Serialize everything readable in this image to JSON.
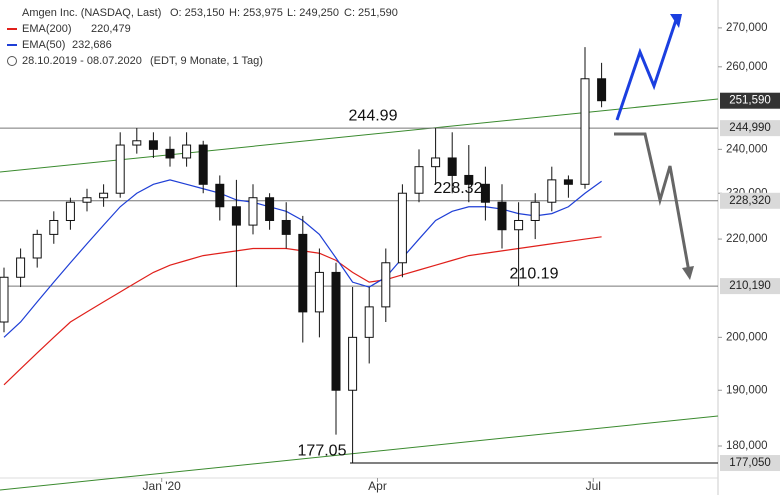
{
  "chart_data": {
    "type": "candlestick",
    "header": {
      "title": "Amgen Inc. (NASDAQ, Last)",
      "ohlc": [
        "O: 253,150",
        "H: 253,975",
        "L: 249,250",
        "C: 251,590"
      ],
      "period": "28.10.2019 - 08.07.2020",
      "period_note": "(EDT, 9 Monate, 1 Tag)"
    },
    "categories": [
      null,
      null,
      null,
      null,
      null,
      null,
      null,
      null,
      null,
      null,
      null,
      null,
      null,
      null,
      null,
      null,
      null,
      null,
      null,
      null,
      null,
      null,
      null,
      null,
      null,
      null,
      null,
      null,
      null,
      null,
      null,
      null,
      null,
      null,
      null,
      null,
      null
    ],
    "open": [
      203,
      212,
      216,
      221,
      224,
      228,
      229,
      230,
      241,
      242,
      240,
      238,
      241,
      232,
      227,
      223,
      229,
      224,
      221,
      205,
      213,
      190,
      200,
      206,
      215,
      230,
      236,
      238,
      234,
      232,
      228,
      222,
      224,
      228,
      233,
      232,
      257
    ],
    "high": [
      214,
      218,
      222,
      226,
      229,
      231,
      232,
      244,
      245,
      244,
      243,
      244,
      242,
      234,
      233,
      232,
      230,
      228,
      225,
      218,
      215,
      210,
      210,
      218,
      232,
      240,
      245,
      244,
      241,
      236,
      232,
      228,
      230,
      236,
      234,
      265,
      261
    ],
    "low": [
      201,
      210,
      214,
      219,
      222,
      226,
      227,
      229,
      239,
      238,
      236,
      236,
      230,
      224,
      210,
      221,
      222,
      218,
      199,
      200,
      182,
      177.05,
      195,
      203,
      212,
      228,
      232,
      230,
      228,
      224,
      218,
      210.19,
      220,
      226,
      229,
      231,
      250
    ],
    "close": [
      212,
      216,
      221,
      224,
      228,
      229,
      230,
      241,
      242,
      240,
      238,
      241,
      232,
      227,
      223,
      229,
      224,
      221,
      205,
      213,
      190,
      200,
      206,
      215,
      230,
      236,
      238,
      234,
      232,
      228,
      222,
      224,
      228,
      233,
      232,
      257,
      251.59
    ],
    "series": [
      {
        "name": "EMA(200)",
        "last_label": "220,479",
        "color": "#e0201b",
        "values": [
          191,
          194,
          197,
          200,
          203,
          205,
          207,
          209,
          211,
          213,
          214.5,
          215.5,
          216.5,
          217,
          217.5,
          218,
          218,
          218,
          217.5,
          217,
          215.5,
          213,
          211,
          211.5,
          212.5,
          213.5,
          214.5,
          215.5,
          216.5,
          217,
          217.5,
          218,
          218.5,
          219,
          219.5,
          220,
          220.479
        ]
      },
      {
        "name": "EMA(50)",
        "last_label": "232,686",
        "color": "#1f3fd6",
        "values": [
          200,
          203,
          207,
          211,
          215,
          219,
          223,
          227,
          230,
          232,
          233,
          232,
          231,
          230,
          228.5,
          228,
          227,
          226,
          224,
          221,
          216,
          211,
          210,
          212,
          216,
          220,
          224,
          226,
          227,
          227,
          226.5,
          225.5,
          225,
          225.5,
          227,
          230,
          232.686
        ]
      }
    ],
    "levels": [
      {
        "value": 244.99,
        "label": "244,990"
      },
      {
        "value": 228.32,
        "label": "228,320"
      },
      {
        "value": 210.19,
        "label": "210,190"
      },
      {
        "value": 177.05,
        "label": "177,050"
      }
    ],
    "last": {
      "value": 251.59,
      "label": "251,590"
    },
    "log_scale": true,
    "ylim": [
      174.5,
      277.4
    ],
    "yticks": [
      {
        "value": 180,
        "label": "180,000"
      },
      {
        "value": 190,
        "label": "190,000"
      },
      {
        "value": 200,
        "label": "200,000"
      },
      {
        "value": 220,
        "label": "220,000"
      },
      {
        "value": 230,
        "label": "230,000"
      },
      {
        "value": 240,
        "label": "240,000"
      },
      {
        "value": 260,
        "label": "260,000"
      },
      {
        "value": 270,
        "label": "270,000"
      }
    ],
    "xticks": [
      {
        "value": 9.5,
        "label": "Jan '20"
      },
      {
        "value": 22.5,
        "label": "Apr"
      },
      {
        "value": 35.5,
        "label": "Jul"
      }
    ]
  }
}
